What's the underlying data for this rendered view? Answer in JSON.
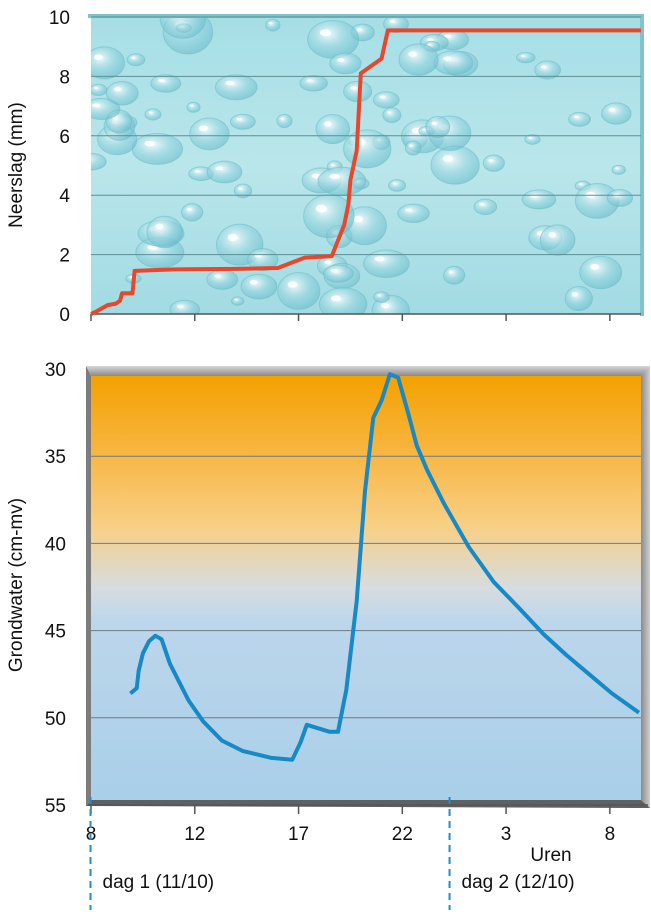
{
  "chart_data": [
    {
      "type": "line",
      "title": "",
      "xlabel": "",
      "ylabel": "Neerslag (mm)",
      "ylim": [
        0,
        10
      ],
      "y_ticks": [
        "0",
        "2",
        "4",
        "6",
        "8",
        "10"
      ],
      "grid": true,
      "background": "water-droplets",
      "series": [
        {
          "color": "#e8472b",
          "x_hours": [
            8,
            8.3,
            8.8,
            9.2,
            9.4,
            9.5,
            9.6,
            9.7,
            10.0,
            10.1,
            12,
            15,
            17,
            18.3,
            19.6,
            20.2,
            20.4,
            20.5,
            20.8,
            21.0,
            21.6,
            22.0,
            22.3,
            27.5,
            34.5
          ],
          "values": [
            0,
            0.1,
            0.3,
            0.35,
            0.45,
            0.7,
            0.7,
            0.7,
            0.7,
            1.45,
            1.5,
            1.52,
            1.55,
            1.9,
            1.95,
            3.0,
            3.7,
            4.5,
            5.5,
            8.1,
            8.4,
            8.6,
            9.55,
            9.55,
            9.55
          ]
        }
      ]
    },
    {
      "type": "line",
      "title": "",
      "xlabel": "Uren",
      "ylabel": "Grondwater (cm-mv)",
      "ylim": [
        30,
        55
      ],
      "y_inverted": true,
      "y_ticks": [
        "30",
        "35",
        "40",
        "45",
        "50",
        "55"
      ],
      "x_range_hours": [
        8,
        34.5
      ],
      "x_ticks": [
        {
          "hours": 8,
          "label": "8"
        },
        {
          "hours": 13,
          "label": "12"
        },
        {
          "hours": 18,
          "label": "17"
        },
        {
          "hours": 23,
          "label": "22"
        },
        {
          "hours": 28,
          "label": "3"
        },
        {
          "hours": 33,
          "label": "8"
        }
      ],
      "grid": true,
      "background": "orange-to-blue gradient",
      "series": [
        {
          "color": "#1789c4",
          "x_hours": [
            9.9,
            10.2,
            10.3,
            10.5,
            10.8,
            11.1,
            11.4,
            11.8,
            12.7,
            13.4,
            14.3,
            15.3,
            16.7,
            17.7,
            18.1,
            18.4,
            19.5,
            19.9,
            20.3,
            20.8,
            21.2,
            21.6,
            22.0,
            22.4,
            22.8,
            23.3,
            23.7,
            24.2,
            25.0,
            26.2,
            27.4,
            28.7,
            29.8,
            30.9,
            32.0,
            33.1,
            34.4
          ],
          "values": [
            48.6,
            48.3,
            47.3,
            46.3,
            45.6,
            45.3,
            45.5,
            46.9,
            49.0,
            50.2,
            51.3,
            51.9,
            52.3,
            52.4,
            51.4,
            50.4,
            50.8,
            50.8,
            48.4,
            43.3,
            37.0,
            32.8,
            31.8,
            30.3,
            30.5,
            32.6,
            34.4,
            35.8,
            37.7,
            40.2,
            42.2,
            43.8,
            45.2,
            46.4,
            47.5,
            48.6,
            49.7
          ]
        }
      ]
    }
  ],
  "x_axis_title": "Uren",
  "day_markers": [
    {
      "label": "dag 1 (11/10)",
      "hours": 8
    },
    {
      "label": "dag 2 (12/10)",
      "hours": 25.3
    }
  ]
}
